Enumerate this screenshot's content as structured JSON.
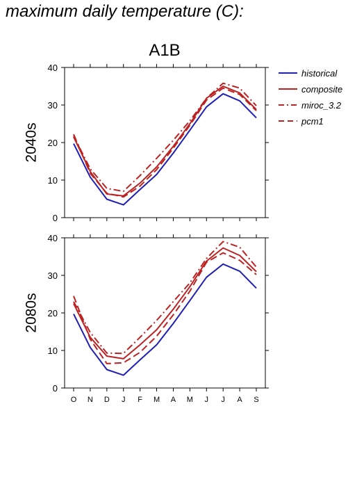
{
  "page": {
    "title": "maximum daily temperature (C):"
  },
  "chart_data": [
    {
      "type": "line",
      "panel_id": "top",
      "title": "A1B",
      "ylabel": "2040s",
      "ylim": [
        0,
        40
      ],
      "yticks": [
        0,
        10,
        20,
        30,
        40
      ],
      "categories": [
        "O",
        "N",
        "D",
        "J",
        "F",
        "M",
        "A",
        "M",
        "J",
        "J",
        "A",
        "S"
      ],
      "grid": false,
      "series": [
        {
          "name": "historical",
          "color": "#1f1fb4",
          "dash": "solid",
          "values": [
            19.7,
            10.8,
            4.9,
            3.4,
            7.5,
            11.5,
            17.2,
            23.3,
            29.5,
            33.0,
            31.1,
            26.6
          ]
        },
        {
          "name": "composite",
          "color": "#bb2222",
          "dash": "solid",
          "values": [
            21.5,
            12.3,
            6.3,
            5.8,
            9.2,
            13.5,
            19.0,
            25.0,
            31.8,
            35.0,
            33.2,
            28.8
          ]
        },
        {
          "name": "miroc_3.2",
          "color": "#bb2222",
          "dash": "dashdot",
          "values": [
            21.8,
            13.0,
            7.8,
            7.0,
            11.2,
            15.8,
            20.6,
            25.8,
            31.8,
            35.8,
            34.5,
            29.8
          ]
        },
        {
          "name": "pcm1",
          "color": "#bb2222",
          "dash": "dashed",
          "values": [
            22.2,
            11.8,
            6.5,
            5.5,
            8.4,
            12.8,
            18.5,
            24.6,
            31.3,
            34.5,
            32.8,
            28.5
          ]
        }
      ]
    },
    {
      "type": "line",
      "panel_id": "bottom",
      "ylabel": "2080s",
      "ylim": [
        0,
        40
      ],
      "yticks": [
        0,
        10,
        20,
        30,
        40
      ],
      "categories": [
        "O",
        "N",
        "D",
        "J",
        "F",
        "M",
        "A",
        "M",
        "J",
        "J",
        "A",
        "S"
      ],
      "grid": false,
      "series": [
        {
          "name": "historical",
          "color": "#1f1fb4",
          "dash": "solid",
          "values": [
            19.7,
            10.8,
            4.9,
            3.4,
            7.5,
            11.5,
            17.2,
            23.3,
            29.5,
            33.0,
            31.1,
            26.6
          ]
        },
        {
          "name": "composite",
          "color": "#bb2222",
          "dash": "solid",
          "values": [
            22.5,
            13.5,
            8.5,
            7.8,
            11.5,
            15.5,
            21.0,
            27.0,
            33.8,
            37.3,
            35.3,
            31.0
          ]
        },
        {
          "name": "miroc_3.2",
          "color": "#bb2222",
          "dash": "dashdot",
          "values": [
            23.0,
            14.8,
            9.3,
            9.2,
            13.5,
            18.0,
            23.0,
            28.0,
            34.5,
            39.0,
            37.5,
            32.2
          ]
        },
        {
          "name": "pcm1",
          "color": "#bb2222",
          "dash": "dashed",
          "values": [
            24.5,
            13.0,
            6.5,
            6.7,
            9.5,
            13.8,
            19.5,
            25.8,
            33.5,
            36.0,
            34.0,
            30.2
          ]
        }
      ]
    }
  ],
  "legend": {
    "placement": "right",
    "items": [
      {
        "name": "historical",
        "color": "#1f1fb4",
        "dash": "solid"
      },
      {
        "name": "composite",
        "color": "#bb2222",
        "dash": "solid"
      },
      {
        "name": "miroc_3.2",
        "color": "#bb2222",
        "dash": "dashdot"
      },
      {
        "name": "pcm1",
        "color": "#bb2222",
        "dash": "dashed"
      }
    ]
  }
}
